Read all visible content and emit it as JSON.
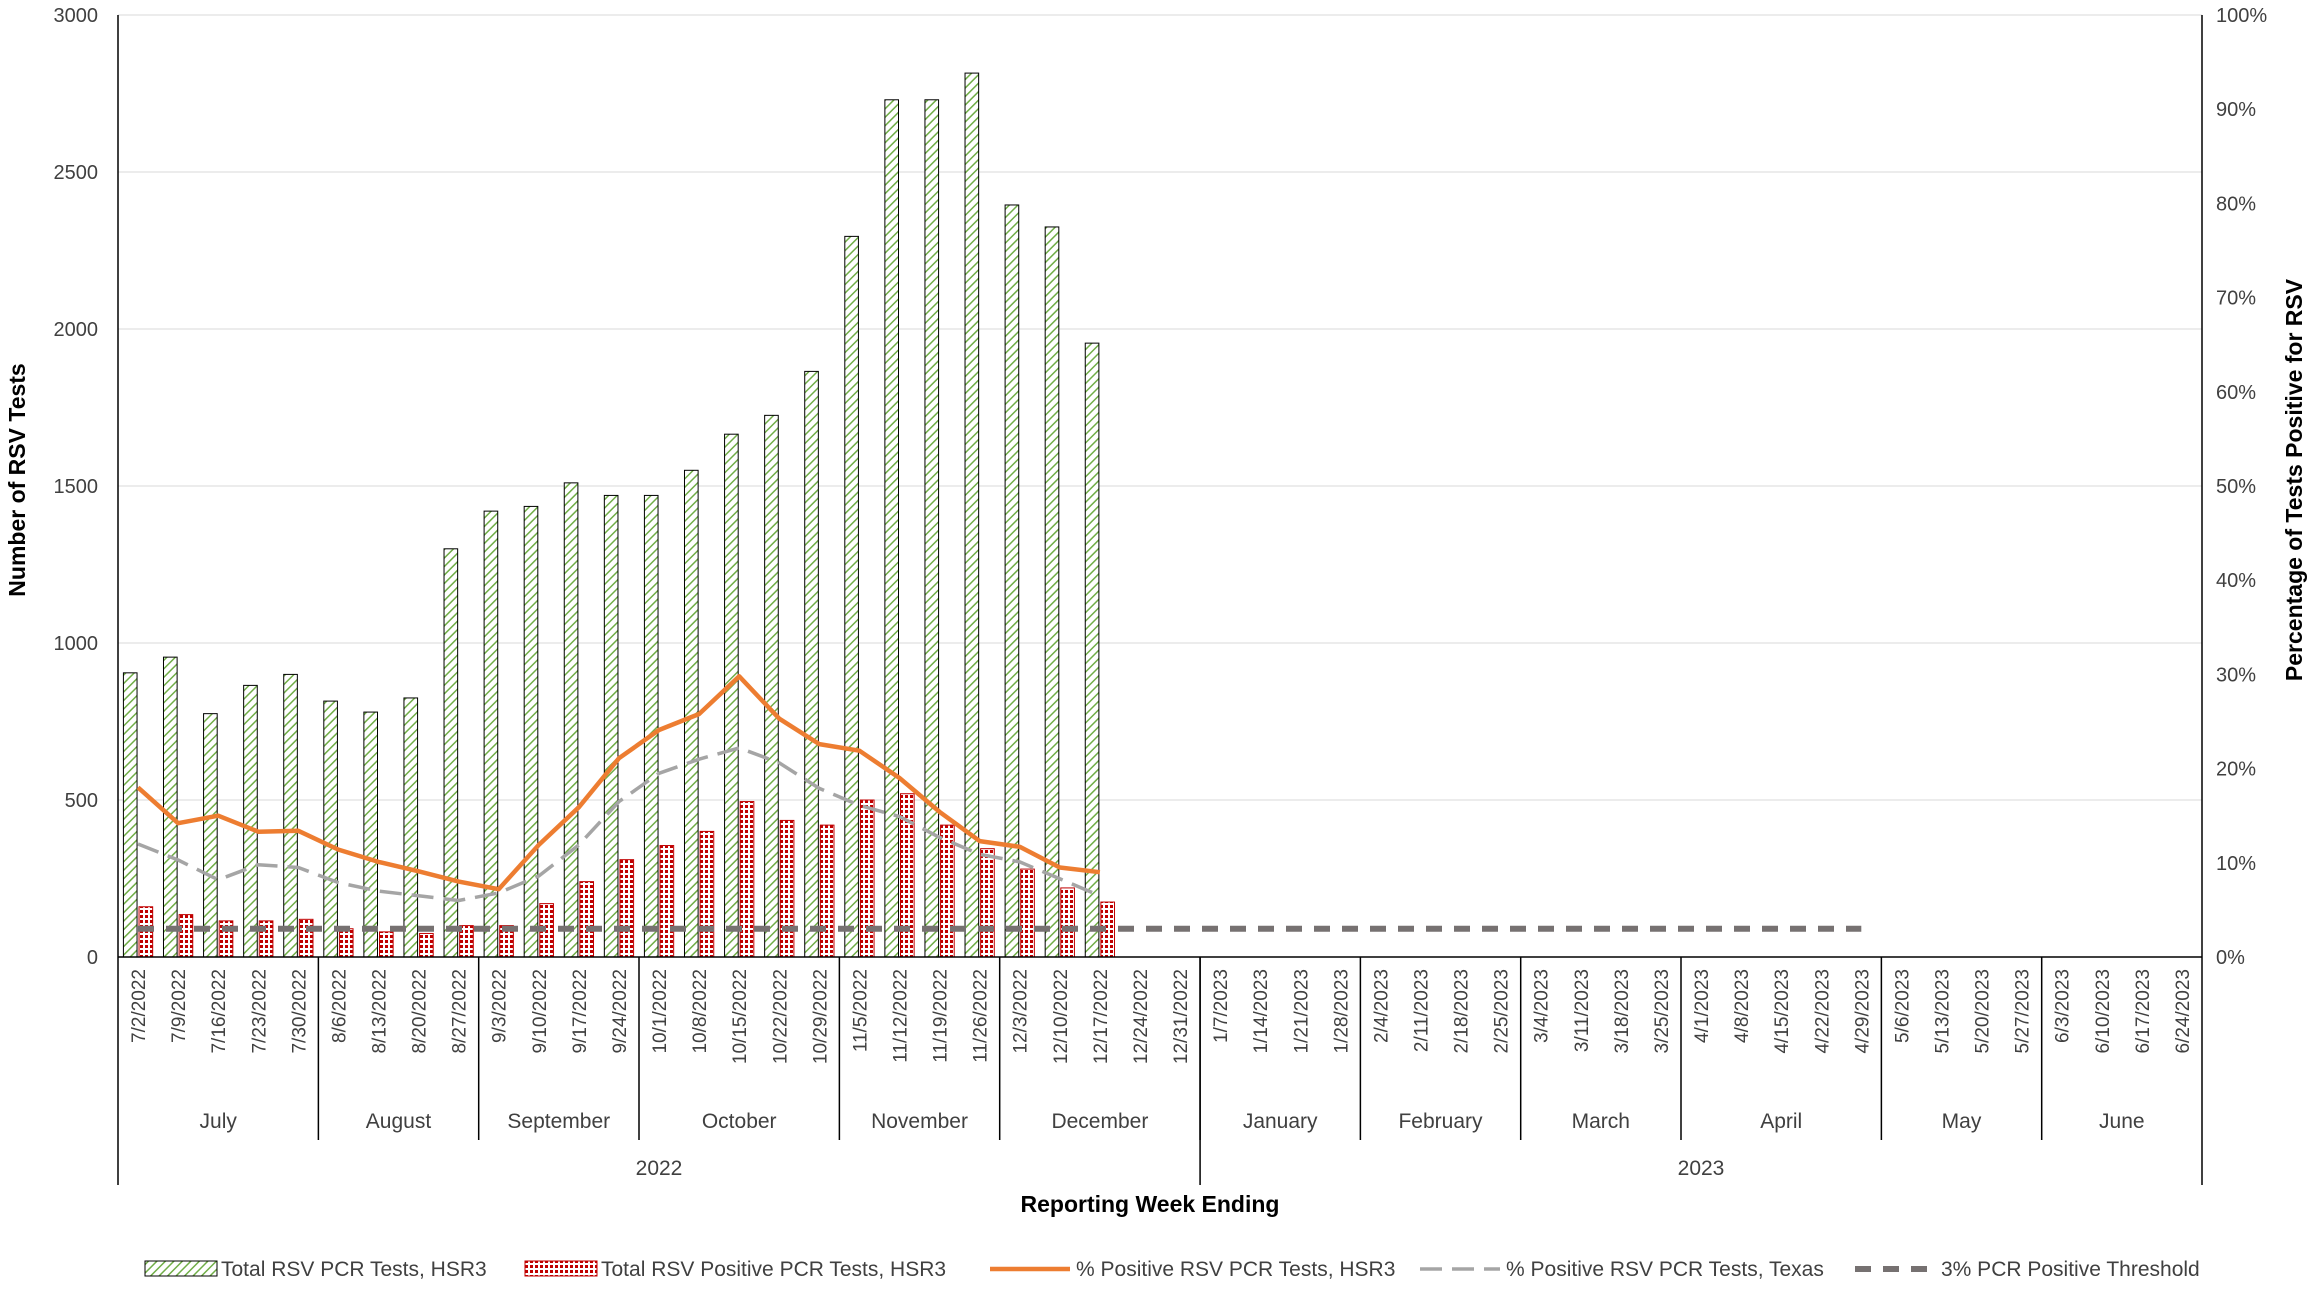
{
  "chart_data": {
    "type": "bar",
    "xlabel": "Reporting Week Ending",
    "ylabel": "Number of RSV Tests",
    "y2label": "Percentage of Tests Positive for RSV",
    "ylim": [
      0,
      3000
    ],
    "y2lim": [
      0,
      100
    ],
    "yticks": [
      "0",
      "500",
      "1000",
      "1500",
      "2000",
      "2500",
      "3000"
    ],
    "y2ticks": [
      "0%",
      "10%",
      "20%",
      "30%",
      "40%",
      "50%",
      "60%",
      "70%",
      "80%",
      "90%",
      "100%"
    ],
    "grid": true,
    "legend_position": "bottom",
    "categories": [
      "7/2/2022",
      "7/9/2022",
      "7/16/2022",
      "7/23/2022",
      "7/30/2022",
      "8/6/2022",
      "8/13/2022",
      "8/20/2022",
      "8/27/2022",
      "9/3/2022",
      "9/10/2022",
      "9/17/2022",
      "9/24/2022",
      "10/1/2022",
      "10/8/2022",
      "10/15/2022",
      "10/22/2022",
      "10/29/2022",
      "11/5/2022",
      "11/12/2022",
      "11/19/2022",
      "11/26/2022",
      "12/3/2022",
      "12/10/2022",
      "12/17/2022",
      "12/24/2022",
      "12/31/2022",
      "1/7/2023",
      "1/14/2023",
      "1/21/2023",
      "1/28/2023",
      "2/4/2023",
      "2/11/2023",
      "2/18/2023",
      "2/25/2023",
      "3/4/2023",
      "3/11/2023",
      "3/18/2023",
      "3/25/2023",
      "4/1/2023",
      "4/8/2023",
      "4/15/2023",
      "4/22/2023",
      "4/29/2023",
      "5/6/2023",
      "5/13/2023",
      "5/20/2023",
      "5/27/2023",
      "6/3/2023",
      "6/10/2023",
      "6/17/2023",
      "6/24/2023"
    ],
    "months": [
      {
        "label": "July",
        "count": 5
      },
      {
        "label": "August",
        "count": 4
      },
      {
        "label": "September",
        "count": 4
      },
      {
        "label": "October",
        "count": 5
      },
      {
        "label": "November",
        "count": 4
      },
      {
        "label": "December",
        "count": 5
      },
      {
        "label": "January",
        "count": 4
      },
      {
        "label": "February",
        "count": 4
      },
      {
        "label": "March",
        "count": 4
      },
      {
        "label": "April",
        "count": 5
      },
      {
        "label": "May",
        "count": 4
      },
      {
        "label": "June",
        "count": 4
      }
    ],
    "years": [
      {
        "label": "2022",
        "count": 27
      },
      {
        "label": "2023",
        "count": 25
      }
    ],
    "series": [
      {
        "name": "Total RSV PCR Tests, HSR3",
        "kind": "bar",
        "axis": "left",
        "color": "#70ad47",
        "fill": "hatch-green",
        "values": [
          905,
          955,
          775,
          865,
          900,
          815,
          780,
          825,
          1300,
          1420,
          1435,
          1510,
          1470,
          1470,
          1550,
          1665,
          1725,
          1865,
          2295,
          2730,
          2730,
          2815,
          2395,
          2325,
          1955,
          null,
          null,
          null,
          null,
          null,
          null,
          null,
          null,
          null,
          null,
          null,
          null,
          null,
          null,
          null,
          null,
          null,
          null,
          null,
          null,
          null,
          null,
          null,
          null,
          null,
          null,
          null
        ]
      },
      {
        "name": "Total RSV Positive PCR Tests, HSR3",
        "kind": "bar",
        "axis": "left",
        "color": "#c00000",
        "fill": "dots-red",
        "values": [
          160,
          135,
          115,
          115,
          120,
          90,
          80,
          75,
          100,
          100,
          170,
          240,
          310,
          355,
          400,
          495,
          435,
          420,
          500,
          520,
          420,
          345,
          280,
          220,
          175,
          null,
          null,
          null,
          null,
          null,
          null,
          null,
          null,
          null,
          null,
          null,
          null,
          null,
          null,
          null,
          null,
          null,
          null,
          null,
          null,
          null,
          null,
          null,
          null,
          null,
          null,
          null
        ]
      },
      {
        "name": "% Positive RSV PCR Tests, HSR3",
        "kind": "line",
        "axis": "right",
        "color": "#ed7d31",
        "dash": "solid",
        "values": [
          18,
          14.2,
          15,
          13.3,
          13.4,
          11.4,
          10.1,
          9.1,
          8,
          7.2,
          11.9,
          15.9,
          21.1,
          24.1,
          25.8,
          29.8,
          25.3,
          22.6,
          21.9,
          19,
          15.4,
          12.3,
          11.7,
          9.5,
          9,
          null,
          null,
          null,
          null,
          null,
          null,
          null,
          null,
          null,
          null,
          null,
          null,
          null,
          null,
          null,
          null,
          null,
          null,
          null,
          null,
          null,
          null,
          null,
          null,
          null,
          null,
          null
        ]
      },
      {
        "name": "% Positive RSV PCR Tests, Texas",
        "kind": "line",
        "axis": "right",
        "color": "#a5a5a5",
        "dash": "long-dash",
        "values": [
          12,
          10.3,
          8.2,
          9.8,
          9.5,
          7.9,
          7,
          6.5,
          6,
          6.8,
          8.6,
          11.9,
          16.5,
          19.5,
          21,
          22.2,
          20.6,
          17.9,
          16.1,
          14.9,
          12.7,
          10.9,
          10.1,
          8.3,
          6.5,
          null,
          null,
          null,
          null,
          null,
          null,
          null,
          null,
          null,
          null,
          null,
          null,
          null,
          null,
          null,
          null,
          null,
          null,
          null,
          null,
          null,
          null,
          null,
          null,
          null,
          null,
          null
        ]
      },
      {
        "name": "3% PCR Positive Threshold",
        "kind": "line",
        "axis": "right",
        "color": "#767171",
        "dash": "dash-bold",
        "values": [
          3,
          3,
          3,
          3,
          3,
          3,
          3,
          3,
          3,
          3,
          3,
          3,
          3,
          3,
          3,
          3,
          3,
          3,
          3,
          3,
          3,
          3,
          3,
          3,
          3,
          3,
          3,
          3,
          3,
          3,
          3,
          3,
          3,
          3,
          3,
          3,
          3,
          3,
          3,
          3,
          3,
          3,
          3,
          3,
          null,
          null,
          null,
          null,
          null,
          null,
          null,
          null
        ]
      }
    ]
  }
}
